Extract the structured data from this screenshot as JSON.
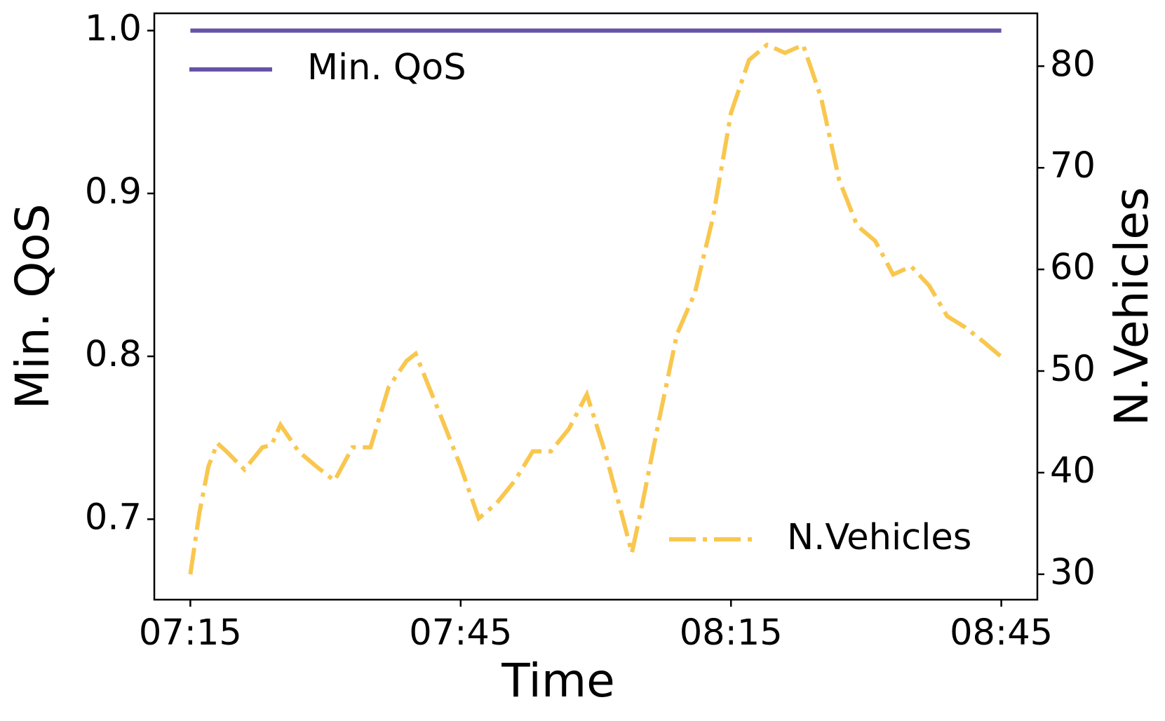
{
  "chart_data": {
    "type": "line",
    "xlabel": "Time",
    "ylabel": "Min. QoS",
    "y2label": "N.Vehicles",
    "x": [
      "07:15",
      "07:16",
      "07:17",
      "07:18",
      "07:19",
      "07:21",
      "07:23",
      "07:24",
      "07:25",
      "07:27",
      "07:29",
      "07:31",
      "07:33",
      "07:35",
      "07:37",
      "07:39",
      "07:40",
      "07:41",
      "07:43",
      "07:45",
      "07:47",
      "07:49",
      "07:51",
      "07:53",
      "07:55",
      "07:57",
      "07:59",
      "08:01",
      "08:03",
      "08:04",
      "08:05",
      "08:07",
      "08:09",
      "08:11",
      "08:13",
      "08:15",
      "08:17",
      "08:19",
      "08:21",
      "08:23",
      "08:25",
      "08:27",
      "08:29",
      "08:31",
      "08:33",
      "08:35",
      "08:37",
      "08:39",
      "08:41",
      "08:43",
      "08:45"
    ],
    "xlim": [
      "07:11",
      "08:49"
    ],
    "xticks": [
      "07:15",
      "07:45",
      "08:15",
      "08:45"
    ],
    "ylim": [
      0.6506,
      1.0106
    ],
    "yticks": [
      0.7,
      0.8,
      0.9,
      {
        "value": 1,
        "label": "1.0"
      }
    ],
    "y2lim": [
      27.5,
      85.2
    ],
    "y2ticks": [
      30,
      40,
      50,
      60,
      70,
      80
    ],
    "series": [
      {
        "name": "Min. QoS",
        "color": "#6653a6",
        "style": "solid",
        "legend": "upper left",
        "values": [
          1,
          1,
          1,
          1,
          1,
          1,
          1,
          1,
          1,
          1,
          1,
          1,
          1,
          1,
          1,
          1,
          1,
          1,
          1,
          1,
          1,
          1,
          1,
          1,
          1,
          1,
          1,
          1,
          1,
          1,
          1,
          1,
          1,
          1,
          1,
          1,
          1,
          1,
          1,
          1,
          1,
          1,
          1,
          1,
          1,
          1,
          1,
          1,
          1,
          1,
          1
        ]
      },
      {
        "name": "N.Vehicles",
        "color": "#f9c74f",
        "style": "dashdot",
        "axis": "y2",
        "legend": "lower right",
        "values": [
          30,
          36,
          40.6,
          42.9,
          42.1,
          40.3,
          42.5,
          42.7,
          44.7,
          42.1,
          40.6,
          39.2,
          42.5,
          42.5,
          48.4,
          51.0,
          51.7,
          49.5,
          45.1,
          40.6,
          35.5,
          37.0,
          39.2,
          42.1,
          42.1,
          44.3,
          47.7,
          42.1,
          35.5,
          32.1,
          36.2,
          45.1,
          53.6,
          57.7,
          65.1,
          75.4,
          80.6,
          82.1,
          81.3,
          82.1,
          76.9,
          68.8,
          64.3,
          62.8,
          59.5,
          60.3,
          58.4,
          55.4,
          54.3,
          52.9,
          51.4
        ]
      }
    ]
  }
}
